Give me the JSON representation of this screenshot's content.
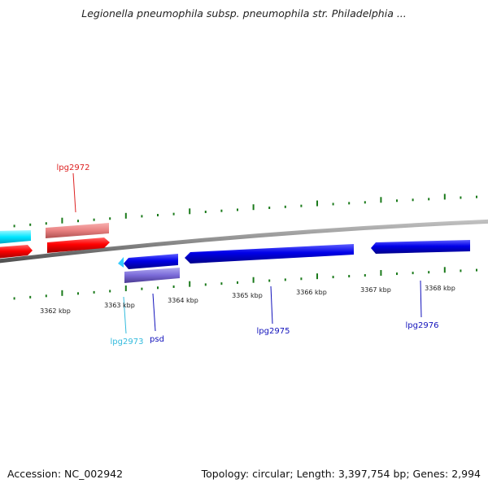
{
  "title": "Legionella pneumophila subsp. pneumophila str. Philadelphia ...",
  "footer": {
    "accession": "Accession: NC_002942",
    "summary": "Topology: circular; Length: 3,397,754 bp; Genes: 2,994"
  },
  "colors": {
    "backbone": "#8c8c8c",
    "ticks": "#1a7a1a",
    "forward_gene": "#ff0000",
    "forward_light": "#f08080",
    "forward_light2": "#00e5ff",
    "reverse_gene": "#0000e0",
    "reverse_light": "#7a6ad8",
    "reverse_cyan": "#33ccff"
  },
  "ruler_labels": [
    "3362 kbp",
    "3363 kbp",
    "3364 kbp",
    "3365 kbp",
    "3366 kbp",
    "3367 kbp",
    "3368 kbp"
  ],
  "gene_labels": [
    {
      "id": "lpg2972",
      "text": "lpg2972",
      "color": "#dd2222"
    },
    {
      "id": "lpg2973",
      "text": "lpg2973",
      "color": "#33bbdd"
    },
    {
      "id": "psd",
      "text": "psd",
      "color": "#1111bb"
    },
    {
      "id": "lpg2975",
      "text": "lpg2975",
      "color": "#1111bb"
    },
    {
      "id": "lpg2976",
      "text": "lpg2976",
      "color": "#1111bb"
    }
  ]
}
